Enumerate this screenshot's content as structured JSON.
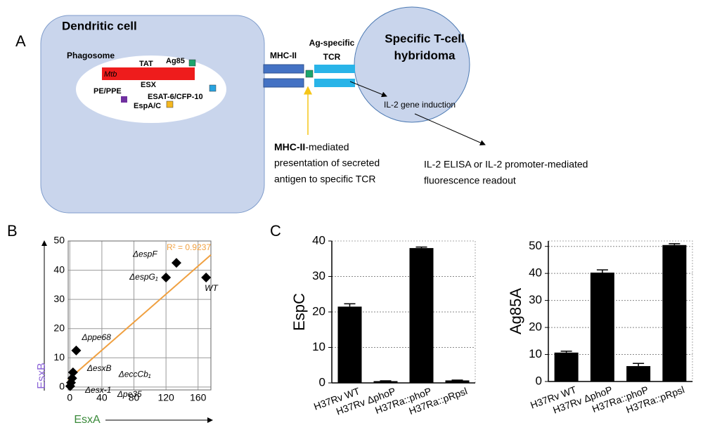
{
  "diagram": {
    "panel_labels": [
      "A",
      "B",
      "C"
    ],
    "dendritic_cell": "Dendritic cell",
    "phagosome": "Phagosome",
    "mtb": "Mtb",
    "tat": "TAT",
    "esx": "ESX",
    "ag85": "Ag85",
    "pe_ppe": "PE/PPE",
    "esat": "ESAT-6/CFP-10",
    "espac": "EspA/C",
    "mhc": "MHC-II",
    "tcr": [
      "Ag-specific",
      "TCR"
    ],
    "tcell": [
      "Specific T-cell",
      "hybridoma"
    ],
    "il2_induction": "IL-2 gene induction",
    "presentation": {
      "bold": "MHC-II",
      "lines": [
        "-mediated",
        "presentation of secreted",
        "antigen to specific TCR"
      ]
    },
    "readout": [
      "IL-2 ELISA or IL-2 promoter-mediated",
      "fluorescence readout"
    ]
  },
  "chart_data": [
    {
      "type": "scatter",
      "x_label": "EsxA",
      "y_label": "EsxB",
      "annotation": "R² = 0.9237",
      "x": [
        133,
        120,
        170,
        8,
        4,
        3,
        1.5,
        0.5
      ],
      "values": [
        42.5,
        37.5,
        37.5,
        12.5,
        5,
        3,
        1.5,
        0.3
      ],
      "point_labels": [
        "ΔespF",
        "ΔespG₁",
        "WT",
        "Δppe68",
        "ΔesxB",
        "ΔeccCb₁",
        "Δesx-1",
        "Δpe35"
      ],
      "trendline": {
        "intercept": 3,
        "slope": 0.24,
        "color": "#f0a040"
      },
      "color": "#000000",
      "xlim": [
        -2,
        176
      ],
      "ylim": [
        -1,
        50
      ],
      "xticks": [
        0,
        40,
        80,
        120,
        160
      ],
      "yticks": [
        0,
        10,
        20,
        30,
        40,
        50
      ],
      "grid": true
    },
    {
      "type": "bar",
      "y_label": "EspC",
      "categories": [
        "H37Rv WT",
        "H37Rv ΔphoP",
        "H37Ra::phoP",
        "H37Ra::pRpsl"
      ],
      "values": [
        21.5,
        0.5,
        38,
        0.7
      ],
      "errors": [
        0.8,
        0.1,
        0.3,
        0.1
      ],
      "color": "#000000",
      "ylim": [
        0,
        40
      ],
      "yticks": [
        0,
        10,
        20,
        30,
        40
      ],
      "grid": true
    },
    {
      "type": "bar",
      "y_label": "Ag85A",
      "categories": [
        "H37Rv WT",
        "H37Rv ΔphoP",
        "H37Ra::phoP",
        "H37Ra::pRpsl"
      ],
      "values": [
        10.7,
        40.3,
        5.7,
        50.5
      ],
      "errors": [
        0.5,
        1,
        1,
        0.5
      ],
      "color": "#000000",
      "ylim": [
        0,
        52
      ],
      "yticks": [
        0,
        10,
        20,
        30,
        40,
        50
      ],
      "grid": true
    }
  ]
}
